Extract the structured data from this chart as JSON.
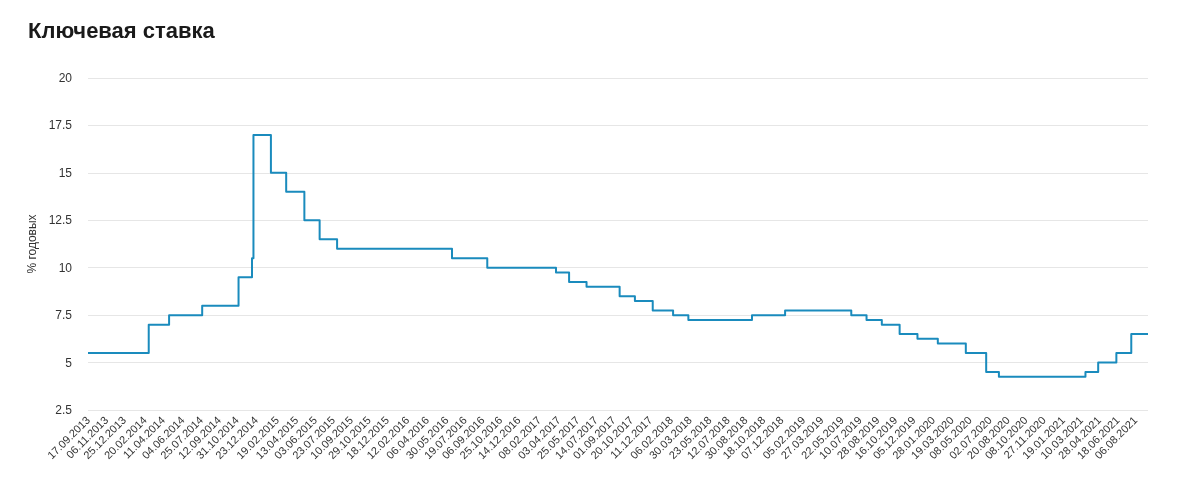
{
  "chart_data": {
    "type": "step",
    "title": "Ключевая ставка",
    "ylabel": "% годовых",
    "x": [
      "2013-09-17",
      "2014-03-03",
      "2014-04-28",
      "2014-07-28",
      "2014-11-05",
      "2014-12-12",
      "2014-12-16",
      "2015-02-02",
      "2015-03-16",
      "2015-05-05",
      "2015-06-16",
      "2015-08-03",
      "2016-06-14",
      "2016-09-19",
      "2017-03-27",
      "2017-05-02",
      "2017-06-19",
      "2017-09-18",
      "2017-10-30",
      "2017-12-18",
      "2018-02-12",
      "2018-03-26",
      "2018-09-17",
      "2018-12-17",
      "2019-06-17",
      "2019-07-29",
      "2019-09-09",
      "2019-10-28",
      "2019-12-16",
      "2020-02-10",
      "2020-04-27",
      "2020-06-22",
      "2020-07-27",
      "2021-03-22",
      "2021-04-26",
      "2021-06-15",
      "2021-07-26",
      "2021-09-10"
    ],
    "series": [
      {
        "color": "#1a8bbd",
        "values": [
          5.5,
          7,
          7.5,
          8,
          9.5,
          10.5,
          17,
          15,
          14,
          12.5,
          11.5,
          11,
          10.5,
          10,
          9.75,
          9.25,
          9,
          8.5,
          8.25,
          7.75,
          7.5,
          7.25,
          7.5,
          7.75,
          7.5,
          7.25,
          7,
          6.5,
          6.25,
          6,
          5.5,
          4.5,
          4.25,
          4.5,
          5,
          5.5,
          6.5,
          6.5
        ]
      }
    ],
    "xlim": [
      "2013-09-17",
      "2021-09-10"
    ],
    "xticks": [
      {
        "value": "2013-09-17",
        "label": "17.09.2013"
      },
      {
        "value": "2013-11-06",
        "label": "06.11.2013"
      },
      {
        "value": "2013-12-25",
        "label": "25.12.2013"
      },
      {
        "value": "2014-02-20",
        "label": "20.02.2014"
      },
      {
        "value": "2014-04-11",
        "label": "11.04.2014"
      },
      {
        "value": "2014-06-04",
        "label": "04.06.2014"
      },
      {
        "value": "2014-07-25",
        "label": "25.07.2014"
      },
      {
        "value": "2014-09-12",
        "label": "12.09.2014"
      },
      {
        "value": "2014-10-31",
        "label": "31.10.2014"
      },
      {
        "value": "2014-12-23",
        "label": "23.12.2014"
      },
      {
        "value": "2015-02-19",
        "label": "19.02.2015"
      },
      {
        "value": "2015-04-13",
        "label": "13.04.2015"
      },
      {
        "value": "2015-06-03",
        "label": "03.06.2015"
      },
      {
        "value": "2015-07-23",
        "label": "23.07.2015"
      },
      {
        "value": "2015-09-10",
        "label": "10.09.2015"
      },
      {
        "value": "2015-10-29",
        "label": "29.10.2015"
      },
      {
        "value": "2015-12-18",
        "label": "18.12.2015"
      },
      {
        "value": "2016-02-12",
        "label": "12.02.2016"
      },
      {
        "value": "2016-04-06",
        "label": "06.04.2016"
      },
      {
        "value": "2016-05-30",
        "label": "30.05.2016"
      },
      {
        "value": "2016-07-19",
        "label": "19.07.2016"
      },
      {
        "value": "2016-09-06",
        "label": "06.09.2016"
      },
      {
        "value": "2016-10-25",
        "label": "25.10.2016"
      },
      {
        "value": "2016-12-14",
        "label": "14.12.2016"
      },
      {
        "value": "2017-02-08",
        "label": "08.02.2017"
      },
      {
        "value": "2017-04-03",
        "label": "03.04.2017"
      },
      {
        "value": "2017-05-25",
        "label": "25.05.2017"
      },
      {
        "value": "2017-07-14",
        "label": "14.07.2017"
      },
      {
        "value": "2017-09-01",
        "label": "01.09.2017"
      },
      {
        "value": "2017-10-20",
        "label": "20.10.2017"
      },
      {
        "value": "2017-12-11",
        "label": "11.12.2017"
      },
      {
        "value": "2018-02-06",
        "label": "06.02.2018"
      },
      {
        "value": "2018-03-30",
        "label": "30.03.2018"
      },
      {
        "value": "2018-05-23",
        "label": "23.05.2018"
      },
      {
        "value": "2018-07-12",
        "label": "12.07.2018"
      },
      {
        "value": "2018-08-30",
        "label": "30.08.2018"
      },
      {
        "value": "2018-10-18",
        "label": "18.10.2018"
      },
      {
        "value": "2018-12-07",
        "label": "07.12.2018"
      },
      {
        "value": "2019-02-05",
        "label": "05.02.2019"
      },
      {
        "value": "2019-03-27",
        "label": "27.03.2019"
      },
      {
        "value": "2019-05-22",
        "label": "22.05.2019"
      },
      {
        "value": "2019-07-10",
        "label": "10.07.2019"
      },
      {
        "value": "2019-08-28",
        "label": "28.08.2019"
      },
      {
        "value": "2019-10-16",
        "label": "16.10.2019"
      },
      {
        "value": "2019-12-05",
        "label": "05.12.2019"
      },
      {
        "value": "2020-01-28",
        "label": "28.01.2020"
      },
      {
        "value": "2020-03-19",
        "label": "19.03.2020"
      },
      {
        "value": "2020-05-08",
        "label": "08.05.2020"
      },
      {
        "value": "2020-07-02",
        "label": "02.07.2020"
      },
      {
        "value": "2020-08-20",
        "label": "20.08.2020"
      },
      {
        "value": "2020-10-08",
        "label": "08.10.2020"
      },
      {
        "value": "2020-11-27",
        "label": "27.11.2020"
      },
      {
        "value": "2021-01-19",
        "label": "19.01.2021"
      },
      {
        "value": "2021-03-10",
        "label": "10.03.2021"
      },
      {
        "value": "2021-04-28",
        "label": "28.04.2021"
      },
      {
        "value": "2021-06-18",
        "label": "18.06.2021"
      },
      {
        "value": "2021-08-06",
        "label": "06.08.2021"
      }
    ],
    "ylim": [
      2.5,
      20
    ],
    "yticks": [
      2.5,
      5,
      7.5,
      10,
      12.5,
      15,
      17.5,
      20
    ],
    "grid": "y",
    "marker": "none",
    "line_style": "solid"
  }
}
